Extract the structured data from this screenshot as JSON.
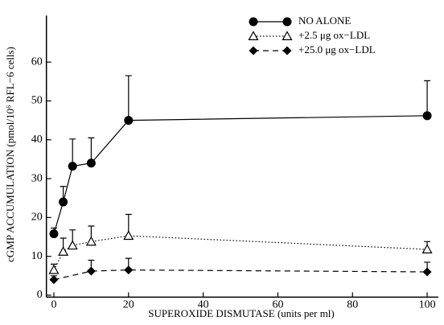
{
  "chart_data": {
    "type": "line",
    "x_label": "SUPEROXIDE DISMUTASE (units per ml)",
    "y_label": "cGMP ACCUMULATION (pmol/10⁶ RFL−6 cells)",
    "xlim": [
      -2,
      103
    ],
    "ylim": [
      -0.5,
      72
    ],
    "xticks": [
      0,
      20,
      40,
      60,
      80,
      100
    ],
    "yticks": [
      0,
      10,
      20,
      30,
      40,
      50,
      60
    ],
    "legend": "top-right",
    "series": [
      {
        "name": "NO ALONE",
        "color": "#000000",
        "marker": "circle",
        "line_style": "solid",
        "x": [
          0,
          2.5,
          5,
          10,
          20,
          100
        ],
        "values": [
          15.8,
          24,
          33.2,
          34,
          45,
          46.2
        ],
        "errors": [
          1.5,
          4,
          7,
          6.5,
          11.5,
          9
        ]
      },
      {
        "name": "+2.5 μg ox−LDL",
        "color": "#000000",
        "marker": "triangle",
        "line_style": "dotted",
        "x": [
          0,
          2.5,
          5,
          10,
          20,
          100
        ],
        "values": [
          6.5,
          11.2,
          12.8,
          13.8,
          15.3,
          11.8
        ],
        "errors": [
          1.5,
          3.5,
          4,
          4,
          5.5,
          2
        ]
      },
      {
        "name": "+25.0 μg ox−LDL",
        "color": "#000000",
        "marker": "diamond",
        "line_style": "dashed",
        "x": [
          0,
          10,
          20,
          100
        ],
        "values": [
          4,
          6.2,
          6.5,
          6
        ],
        "errors": [
          1,
          2.8,
          3,
          2.5
        ]
      }
    ]
  }
}
